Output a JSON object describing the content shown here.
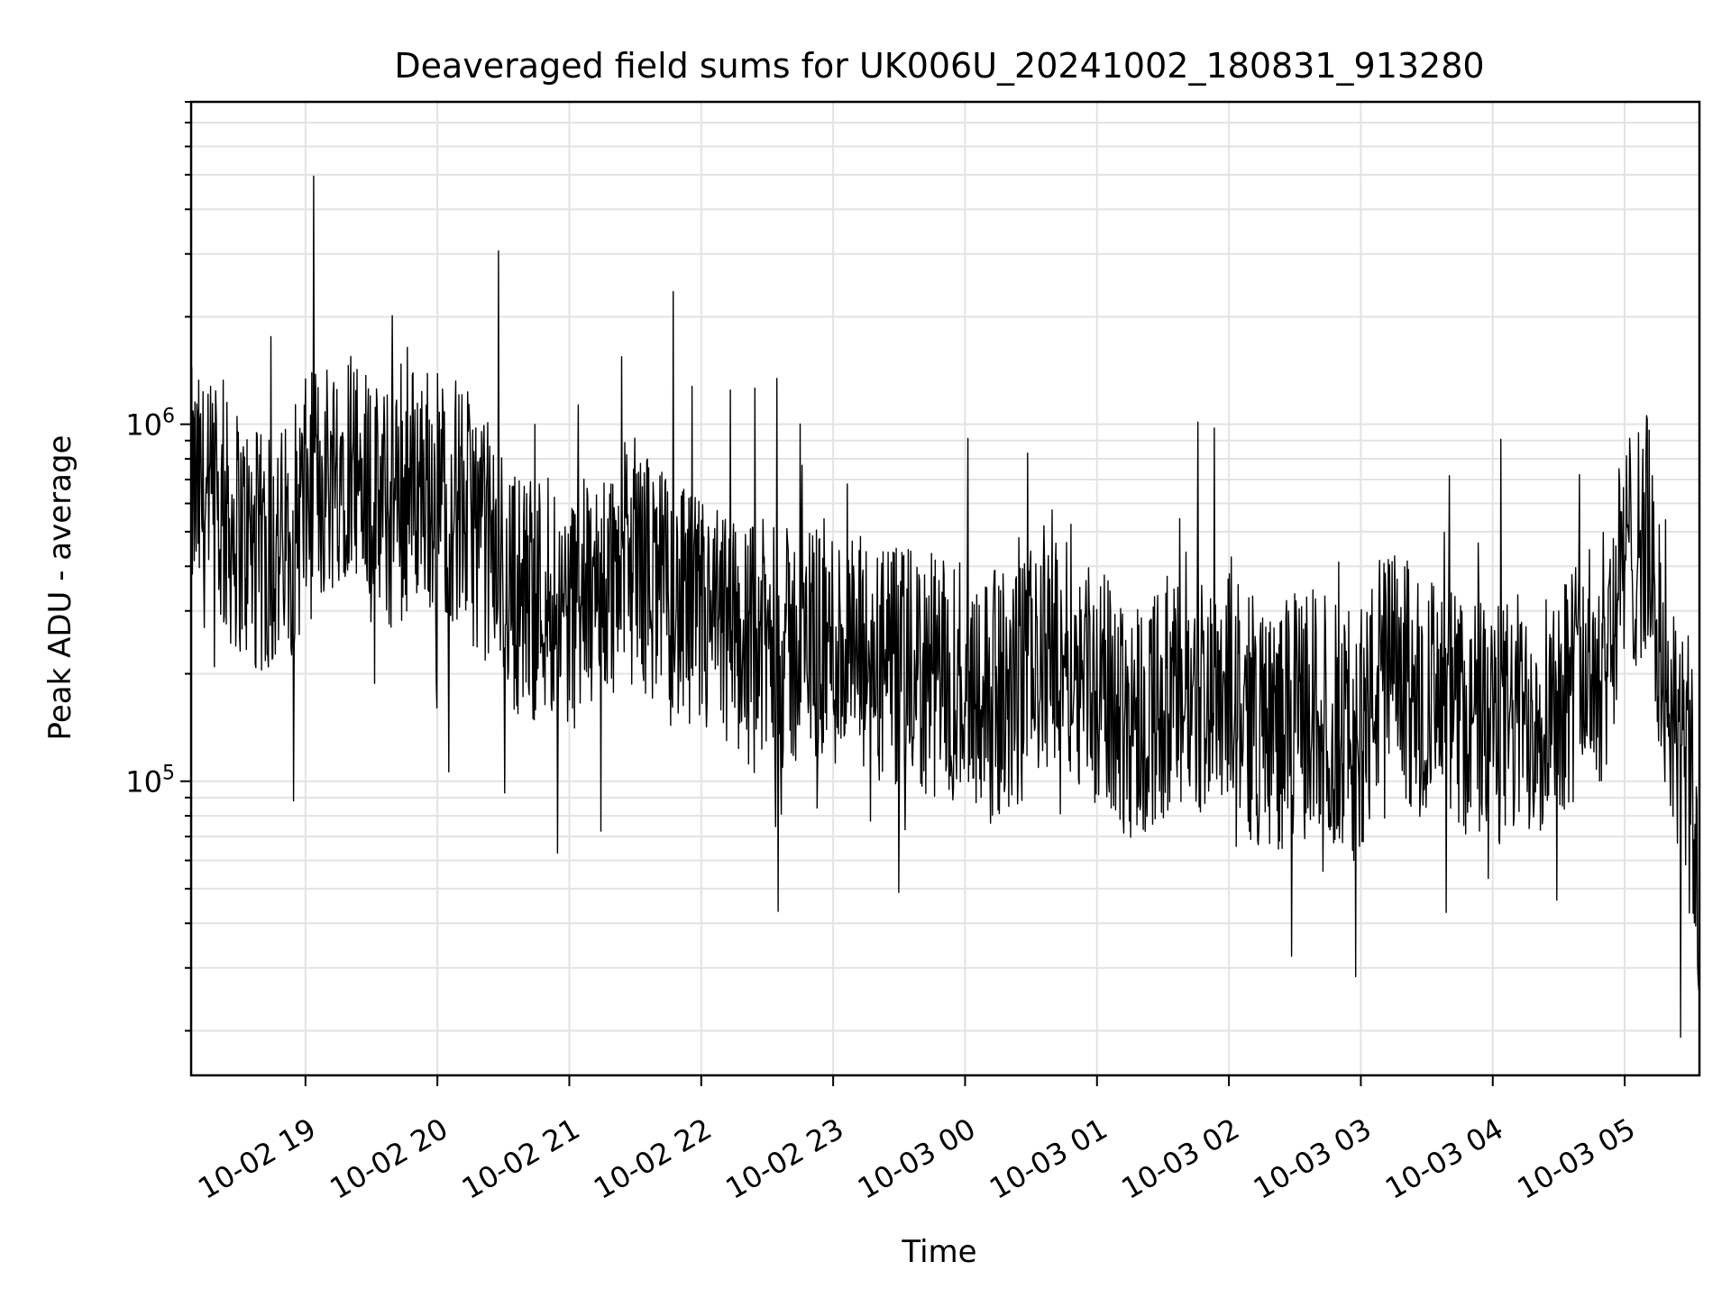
{
  "chart_data": {
    "type": "line",
    "title": "Deaveraged field sums for UK006U_20241002_180831_913280",
    "xlabel": "Time",
    "ylabel": "Peak ADU - average",
    "y_scale": "log",
    "ylim": [
      15000,
      8000000
    ],
    "xlim": [
      "10-02 18:08",
      "10-03 05:34"
    ],
    "grid": true,
    "line_color": "#000000",
    "x_ticks": [
      "10-02 19",
      "10-02 20",
      "10-02 21",
      "10-02 22",
      "10-02 23",
      "10-03 00",
      "10-03 01",
      "10-03 02",
      "10-03 03",
      "10-03 04",
      "10-03 05"
    ],
    "y_ticks": [
      {
        "value": 100000,
        "base": "10",
        "exp": "5"
      },
      {
        "value": 1000000,
        "base": "10",
        "exp": "6"
      }
    ],
    "series": [
      {
        "x": [
          "10-02 18:08",
          "10-02 18:20",
          "10-02 18:30",
          "10-02 18:40",
          "10-02 18:50",
          "10-02 19:00",
          "10-02 19:10",
          "10-02 19:20",
          "10-02 19:30",
          "10-02 19:40",
          "10-02 19:50",
          "10-02 20:00",
          "10-02 20:10",
          "10-02 20:20",
          "10-02 20:30",
          "10-02 20:40",
          "10-02 20:50",
          "10-02 21:00",
          "10-02 21:10",
          "10-02 21:20",
          "10-02 21:30",
          "10-02 21:40",
          "10-02 21:50",
          "10-02 22:00",
          "10-02 22:10",
          "10-02 22:20",
          "10-02 22:30",
          "10-02 22:40",
          "10-02 22:50",
          "10-02 23:00",
          "10-02 23:10",
          "10-02 23:20",
          "10-02 23:30",
          "10-02 23:40",
          "10-02 23:50",
          "10-03 00:00",
          "10-03 00:10",
          "10-03 00:20",
          "10-03 00:30",
          "10-03 00:40",
          "10-03 00:50",
          "10-03 01:00",
          "10-03 01:10",
          "10-03 01:20",
          "10-03 01:30",
          "10-03 01:40",
          "10-03 01:50",
          "10-03 02:00",
          "10-03 02:10",
          "10-03 02:20",
          "10-03 02:30",
          "10-03 02:40",
          "10-03 02:50",
          "10-03 03:00",
          "10-03 03:10",
          "10-03 03:20",
          "10-03 03:30",
          "10-03 03:40",
          "10-03 03:50",
          "10-03 04:00",
          "10-03 04:10",
          "10-03 04:20",
          "10-03 04:30",
          "10-03 04:40",
          "10-03 04:50",
          "10-03 05:00",
          "10-03 05:10",
          "10-03 05:20",
          "10-03 05:30",
          "10-03 05:34"
        ],
        "values": [
          650000,
          550000,
          500000,
          420000,
          450000,
          600000,
          720000,
          850000,
          600000,
          550000,
          700000,
          650000,
          600000,
          500000,
          380000,
          320000,
          350000,
          300000,
          330000,
          380000,
          420000,
          350000,
          300000,
          280000,
          260000,
          250000,
          240000,
          230000,
          250000,
          240000,
          220000,
          210000,
          200000,
          200000,
          190000,
          200000,
          180000,
          170000,
          200000,
          260000,
          230000,
          180000,
          160000,
          150000,
          170000,
          160000,
          180000,
          200000,
          150000,
          140000,
          150000,
          160000,
          140000,
          130000,
          210000,
          190000,
          170000,
          160000,
          150000,
          140000,
          150000,
          160000,
          180000,
          200000,
          220000,
          420000,
          500000,
          150000,
          110000,
          40000
        ]
      }
    ]
  }
}
